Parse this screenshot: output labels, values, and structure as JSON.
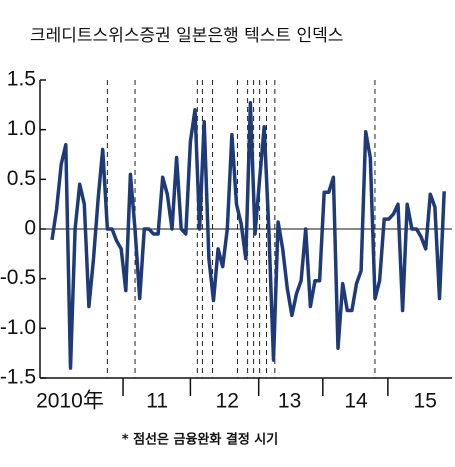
{
  "chart_data": {
    "type": "line",
    "title": "크레디트스위스증권 일본은행 텍스트 인덱스",
    "note": "* 점선은 금융완화 결정 시기",
    "x": [
      0,
      1,
      2,
      3,
      4,
      5,
      6,
      7,
      8,
      9,
      10,
      11,
      12,
      13,
      14,
      15,
      16,
      17,
      18,
      19,
      20,
      21,
      22,
      23,
      24,
      25,
      26,
      27,
      28,
      29,
      30,
      31,
      32,
      33,
      34,
      35,
      36,
      37,
      38,
      39,
      40,
      41,
      42,
      43,
      44,
      45,
      46,
      47,
      48,
      49,
      50,
      51,
      52,
      53,
      54,
      55,
      56,
      57,
      58,
      59,
      60,
      61,
      62,
      63,
      64,
      65,
      66,
      67,
      68,
      69,
      70,
      71,
      72,
      73,
      74,
      75,
      76,
      77,
      78,
      79,
      80,
      81,
      82,
      83,
      84,
      85
    ],
    "series": [
      {
        "color": "#1e3a78",
        "values": [
          -0.11,
          0.2,
          0.65,
          0.85,
          -1.4,
          0.0,
          0.45,
          0.25,
          -0.78,
          -0.3,
          0.3,
          0.8,
          0.0,
          0.0,
          -0.12,
          -0.2,
          -0.62,
          0.55,
          0.0,
          -0.7,
          0.0,
          0.0,
          -0.05,
          -0.05,
          0.52,
          0.35,
          0.0,
          0.72,
          0.0,
          -0.05,
          0.88,
          1.2,
          0.0,
          1.08,
          -0.3,
          -0.72,
          -0.2,
          -0.38,
          0.0,
          0.95,
          0.25,
          0.05,
          -0.3,
          1.27,
          -0.05,
          0.5,
          1.03,
          0.0,
          -1.32,
          0.07,
          -0.2,
          -0.6,
          -0.87,
          -0.65,
          -0.52,
          0.0,
          -0.78,
          -0.52,
          -0.52,
          0.37,
          0.37,
          0.52,
          -1.2,
          -0.55,
          -0.82,
          -0.82,
          -0.55,
          -0.42,
          0.98,
          0.72,
          -0.7,
          -0.52,
          0.1,
          0.1,
          0.15,
          0.25,
          -0.82,
          0.25,
          0.0,
          0.0,
          -0.08,
          -0.2,
          0.35,
          0.22,
          -0.7,
          0.38
        ]
      }
    ],
    "xlim": [
      -2.6,
      86.7
    ],
    "xticks": [
      {
        "value": 3.9,
        "label": "2010年"
      },
      {
        "value": 22.8,
        "label": "11"
      },
      {
        "value": 38,
        "label": "12"
      },
      {
        "value": 51.5,
        "label": "13"
      },
      {
        "value": 65.9,
        "label": "14"
      },
      {
        "value": 80.9,
        "label": "15"
      }
    ],
    "year_boundaries": [
      15.4,
      30,
      44.8,
      58.7,
      72.8
    ],
    "event_lines": [
      12,
      18,
      31.5,
      32.6,
      34.8,
      40.2,
      42.4,
      43.7,
      45,
      46.5,
      48.3,
      70
    ],
    "ylim": [
      -1.5,
      1.5
    ],
    "yticks": [
      1.5,
      {
        "value": 1,
        "label": "1.0"
      },
      0.5,
      0,
      -0.5,
      {
        "value": -1,
        "label": "-1.0"
      },
      -1.5
    ]
  }
}
